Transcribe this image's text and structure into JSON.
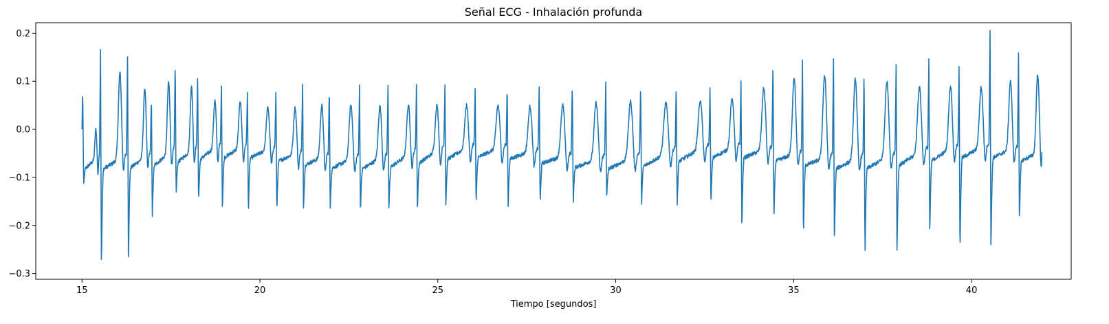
{
  "chart_data": {
    "type": "line",
    "title": "Señal ECG - Inhalación profunda",
    "xlabel": "Tiempo [segundos]",
    "ylabel": "",
    "xlim": [
      13.7,
      42.8
    ],
    "ylim": [
      -0.312,
      0.222
    ],
    "xticks": [
      15,
      20,
      25,
      30,
      35,
      40
    ],
    "xtick_labels": [
      "15",
      "20",
      "25",
      "30",
      "35",
      "40"
    ],
    "yticks": [
      -0.3,
      -0.2,
      -0.1,
      0.0,
      0.1,
      0.2
    ],
    "ytick_labels": [
      "−0.3",
      "−0.2",
      "−0.1",
      "0.0",
      "0.1",
      "0.2"
    ],
    "grid": false,
    "line_color": "#1f77b4",
    "series": [
      {
        "beats": [
          {
            "t": 15.02,
            "r": 0.085,
            "s": -0.12,
            "tw": 0.0
          },
          {
            "t": 15.52,
            "r": 0.165,
            "s": -0.287,
            "tw": 0.118
          },
          {
            "t": 16.28,
            "r": 0.155,
            "s": -0.279,
            "tw": 0.085
          },
          {
            "t": 16.95,
            "r": 0.068,
            "s": -0.185,
            "tw": 0.098
          },
          {
            "t": 17.62,
            "r": 0.143,
            "s": -0.139,
            "tw": 0.088
          },
          {
            "t": 18.25,
            "r": 0.118,
            "s": -0.157,
            "tw": 0.06
          },
          {
            "t": 18.92,
            "r": 0.093,
            "s": -0.17,
            "tw": 0.056
          },
          {
            "t": 19.65,
            "r": 0.083,
            "s": -0.178,
            "tw": 0.045
          },
          {
            "t": 20.45,
            "r": 0.083,
            "s": -0.176,
            "tw": 0.045
          },
          {
            "t": 21.2,
            "r": 0.092,
            "s": -0.17,
            "tw": 0.05
          },
          {
            "t": 21.95,
            "r": 0.09,
            "s": -0.17,
            "tw": 0.05
          },
          {
            "t": 22.8,
            "r": 0.09,
            "s": -0.173,
            "tw": 0.048
          },
          {
            "t": 23.6,
            "r": 0.093,
            "s": -0.172,
            "tw": 0.05
          },
          {
            "t": 24.4,
            "r": 0.093,
            "s": -0.175,
            "tw": 0.05
          },
          {
            "t": 25.2,
            "r": 0.093,
            "s": -0.165,
            "tw": 0.05
          },
          {
            "t": 26.05,
            "r": 0.093,
            "s": -0.163,
            "tw": 0.05
          },
          {
            "t": 26.95,
            "r": 0.093,
            "s": -0.165,
            "tw": 0.048
          },
          {
            "t": 27.85,
            "r": 0.098,
            "s": -0.16,
            "tw": 0.05
          },
          {
            "t": 28.78,
            "r": 0.103,
            "s": -0.155,
            "tw": 0.055
          },
          {
            "t": 29.72,
            "r": 0.1,
            "s": -0.148,
            "tw": 0.058
          },
          {
            "t": 30.7,
            "r": 0.095,
            "s": -0.16,
            "tw": 0.055
          },
          {
            "t": 31.7,
            "r": 0.095,
            "s": -0.165,
            "tw": 0.06
          },
          {
            "t": 32.65,
            "r": 0.093,
            "s": -0.163,
            "tw": 0.065
          },
          {
            "t": 33.52,
            "r": 0.098,
            "s": -0.207,
            "tw": 0.085
          },
          {
            "t": 34.42,
            "r": 0.142,
            "s": -0.19,
            "tw": 0.108
          },
          {
            "t": 35.25,
            "r": 0.155,
            "s": -0.231,
            "tw": 0.112
          },
          {
            "t": 36.12,
            "r": 0.145,
            "s": -0.24,
            "tw": 0.105
          },
          {
            "t": 36.98,
            "r": 0.128,
            "s": -0.269,
            "tw": 0.1
          },
          {
            "t": 37.88,
            "r": 0.135,
            "s": -0.264,
            "tw": 0.088
          },
          {
            "t": 38.8,
            "r": 0.147,
            "s": -0.225,
            "tw": 0.09
          },
          {
            "t": 39.65,
            "r": 0.14,
            "s": -0.263,
            "tw": 0.088
          },
          {
            "t": 40.52,
            "r": 0.21,
            "s": -0.257,
            "tw": 0.1
          },
          {
            "t": 41.32,
            "r": 0.16,
            "s": -0.197,
            "tw": 0.115
          }
        ],
        "x_start": 15.0,
        "x_end": 41.98,
        "y_start": 0.0,
        "y_end": -0.047
      }
    ]
  }
}
